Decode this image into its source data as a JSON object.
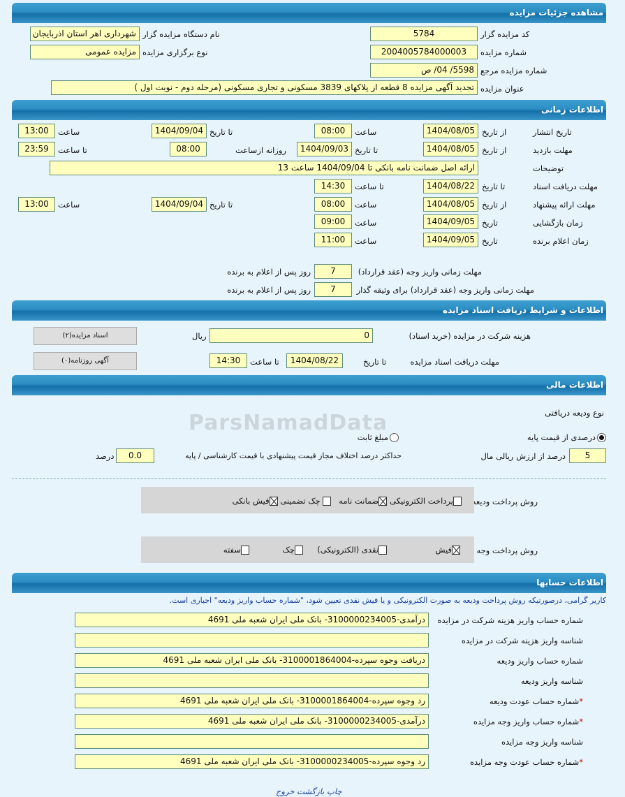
{
  "s1": {
    "title": "مشاهده جزئیات مزایده",
    "code_label": "کد مزایده گزار",
    "code": "5784",
    "org_label": "نام دستگاه مزایده گزار",
    "org": "شهرداری اهر استان اذربایجان",
    "num_label": "شماره مزایده",
    "num": "2004005784000003",
    "type_label": "نوع برگزاری مزایده",
    "type": "مزایده عمومی",
    "ref_label": "شماره مزایده مرجع",
    "ref": "5598/ 04/ ص",
    "subject_label": "عنوان مزایده",
    "subject": "تجدید آگهی مزایده 8 قطعه از پلاکهای 3839 مسکونی  و تجاری مسکونی (مرحله دوم - نوبت اول )"
  },
  "s2": {
    "title": "اطلاعات زمانی",
    "from_date": "از تاریخ",
    "to_date": "تا تاریخ",
    "date": "تاریخ",
    "time": "ساعت",
    "to_time": "تا ساعت",
    "daily_from": "روزانه ازساعت",
    "publish": {
      "label": "تاریخ انتشار",
      "from": "1404/08/05",
      "from_time": "08:00",
      "to": "1404/09/04",
      "to_time": "13:00"
    },
    "visit": {
      "label": "مهلت بازدید",
      "from": "1404/08/05",
      "to": "1404/09/03",
      "daily_from": "08:00",
      "to_time": "23:59"
    },
    "notes_label": "توضیحات",
    "notes": "ارائه اصل ضمانت نامه بانکی تا 1404/09/04 ساعت 13",
    "docs": {
      "label": "مهلت دریافت اسناد",
      "to": "1404/08/22",
      "to_time": "14:30"
    },
    "offer": {
      "label": "مهلت ارائه پیشنهاد",
      "from": "1404/08/05",
      "from_time": "08:00",
      "to": "1404/09/04",
      "to_time": "13:00"
    },
    "opening": {
      "label": "زمان بازگشایی",
      "date": "1404/09/05",
      "time": "09:00"
    },
    "winner": {
      "label": "زمان اعلام برنده",
      "date": "1404/09/05",
      "time": "11:00"
    },
    "pay1_label": "مهلت زمانی واریز وجه (عقد قرارداد)",
    "pay1": "7",
    "pay2_label": "مهلت زمانی واریز وجه (عقد قرارداد) برای وثیقه گذار",
    "pay2": "7",
    "days_suffix": "روز پس از اعلام به برنده"
  },
  "s3": {
    "title": "اطلاعات و شرایط دریافت اسناد مزایده",
    "fee_label": "هزینه شرکت در مزایده (خرید اسناد)",
    "fee": "0",
    "currency": "ریال",
    "deadline_label": "مهلت دریافت اسناد مزایده",
    "to_date": "تا تاریخ",
    "date": "1404/08/22",
    "to_time": "تا ساعت",
    "time": "14:30",
    "btn_docs": "اسناد مزایده(۲)",
    "btn_ads": "آگهی روزنامه(۰)"
  },
  "s4": {
    "title": "اطلاعات مالی",
    "deposit_type_label": "نوع ودیعه دریافتی",
    "radio_percent": "درصدی از قیمت پایه",
    "radio_fixed": "مبلغ ثابت",
    "radio_selected": "percent",
    "percent": "5",
    "percent_suffix": "درصد از ارزش ریالی مال",
    "max_diff_label": "حداکثر درصد اختلاف مجاز قیمت پیشنهادی با قیمت کارشناسی / پایه",
    "max_diff": "0.0",
    "percent_word": "درصد",
    "deposit_method_label": "روش پرداخت ودیعه",
    "deposit_methods": [
      {
        "label": "پرداخت الکترونیکی",
        "checked": false
      },
      {
        "label": "ضمانت نامه",
        "checked": true
      },
      {
        "label": "چک تضمینی",
        "checked": false
      },
      {
        "label": "فیش بانکی",
        "checked": true
      }
    ],
    "payment_method_label": "روش پرداخت وجه مزایده",
    "payment_methods": [
      {
        "label": "فیش",
        "checked": true
      },
      {
        "label": "نقدی (الکترونیکی)",
        "checked": false
      },
      {
        "label": "چک",
        "checked": false
      },
      {
        "label": "سفته",
        "checked": false
      }
    ]
  },
  "s5": {
    "title": "اطلاعات حسابها",
    "note": "کاربر گرامی، درصورتیکه روش پرداخت ودیعه به صورت الکترونیکی و یا فیش نقدی تعیین شود، \"شماره حساب واریز ودیعه\" اجباری است.",
    "rows": [
      {
        "label": "شماره حساب واریز هزینه شرکت در مزایده",
        "value": "درآمدی-3100000234005- بانک ملی ایران شعبه ملی 4691",
        "req": ""
      },
      {
        "label": "شناسه واریز هزینه شرکت در مزایده",
        "value": "",
        "req": ""
      },
      {
        "label": "شماره حساب واریز ودیعه",
        "value": "دریافت وجوه سپرده-3100001864004- بانک ملی ایران شعبه ملی 4691",
        "req": ""
      },
      {
        "label": "شناسه واریز ودیعه",
        "value": "",
        "req": ""
      },
      {
        "label": "شماره حساب عودت ودیعه",
        "value": "رد وجوه سپرده-3100001864004- بانک ملی ایران شعبه ملی 4691",
        "req": "*"
      },
      {
        "label": "شماره حساب واریز وجه مزایده",
        "value": "درآمدی-3100000234005- بانک ملی ایران شعبه ملی 4691",
        "req": "*"
      },
      {
        "label": "شناسه واریز وجه مزایده",
        "value": "",
        "req": ""
      },
      {
        "label": "شماره حساب عودت وجه مزایده",
        "value": "رد وجوه سپرده-3100000234005- بانک ملی ایران شعبه ملی 4691",
        "req": "*"
      }
    ]
  },
  "footer": {
    "print": "چاپ",
    "back": "بازگشت",
    "exit": "خروج"
  },
  "watermark": "ParsNamadData"
}
